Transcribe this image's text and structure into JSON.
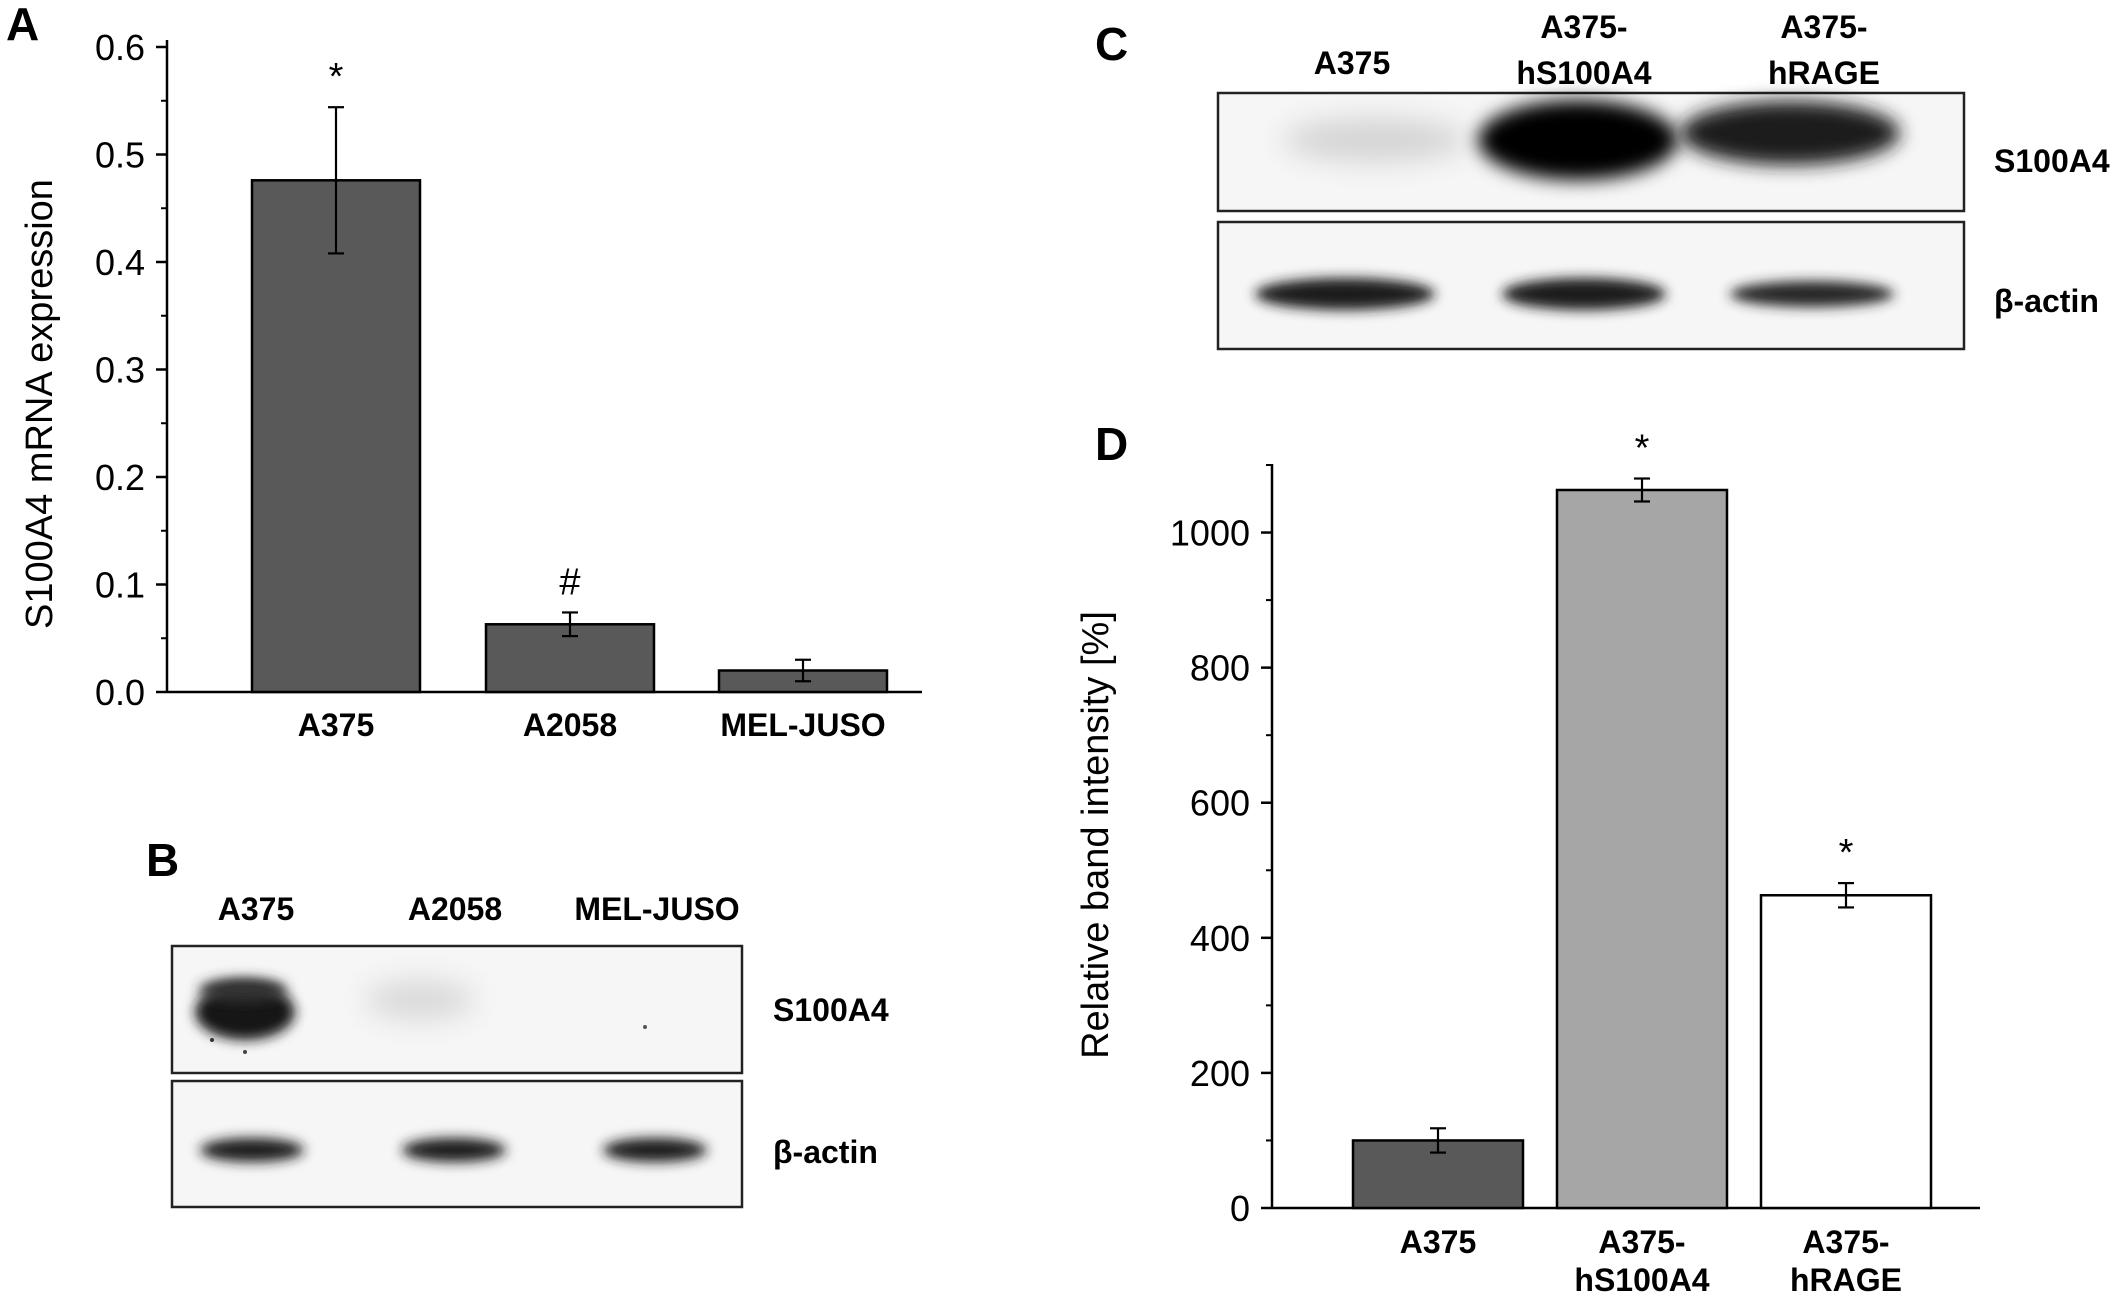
{
  "chart_data": [
    {
      "panel": "A",
      "type": "bar",
      "categories": [
        "A375",
        "A2058",
        "MEL-JUSO"
      ],
      "values": [
        0.476,
        0.063,
        0.02
      ],
      "errors": [
        0.068,
        0.011,
        0.01
      ],
      "annotations": [
        "*",
        "#",
        ""
      ],
      "ylabel": "S100A4 mRNA expression",
      "ylim": [
        0,
        0.6
      ],
      "yticks": [
        "0.0",
        "0.1",
        "0.2",
        "0.3",
        "0.4",
        "0.5",
        "0.6"
      ],
      "colors": [
        "#595959",
        "#595959",
        "#595959"
      ]
    },
    {
      "panel": "D",
      "type": "bar",
      "categories": [
        [
          "A375"
        ],
        [
          "A375-",
          "hS100A4"
        ],
        [
          "A375-",
          "hRAGE"
        ]
      ],
      "values": [
        100,
        1063,
        463
      ],
      "errors": [
        18,
        17,
        18
      ],
      "annotations": [
        "",
        "*",
        "*"
      ],
      "ylabel": "Relative band intensity [%]",
      "ylim": [
        0,
        1100
      ],
      "yticks": [
        "0",
        "200",
        "400",
        "600",
        "800",
        "1000"
      ],
      "colors": [
        "#595959",
        "#a6a6a6",
        "#ffffff"
      ]
    }
  ],
  "blots": {
    "B": {
      "letter": "B",
      "lanes": [
        "A375",
        "A2058",
        "MEL-JUSO"
      ],
      "rows": [
        "S100A4",
        "β-actin"
      ]
    },
    "C": {
      "letter": "C",
      "lanes": [
        [
          "A375"
        ],
        [
          "A375-",
          "hS100A4"
        ],
        [
          "A375-",
          "hRAGE"
        ]
      ],
      "rows": [
        "S100A4",
        "β-actin"
      ]
    }
  }
}
